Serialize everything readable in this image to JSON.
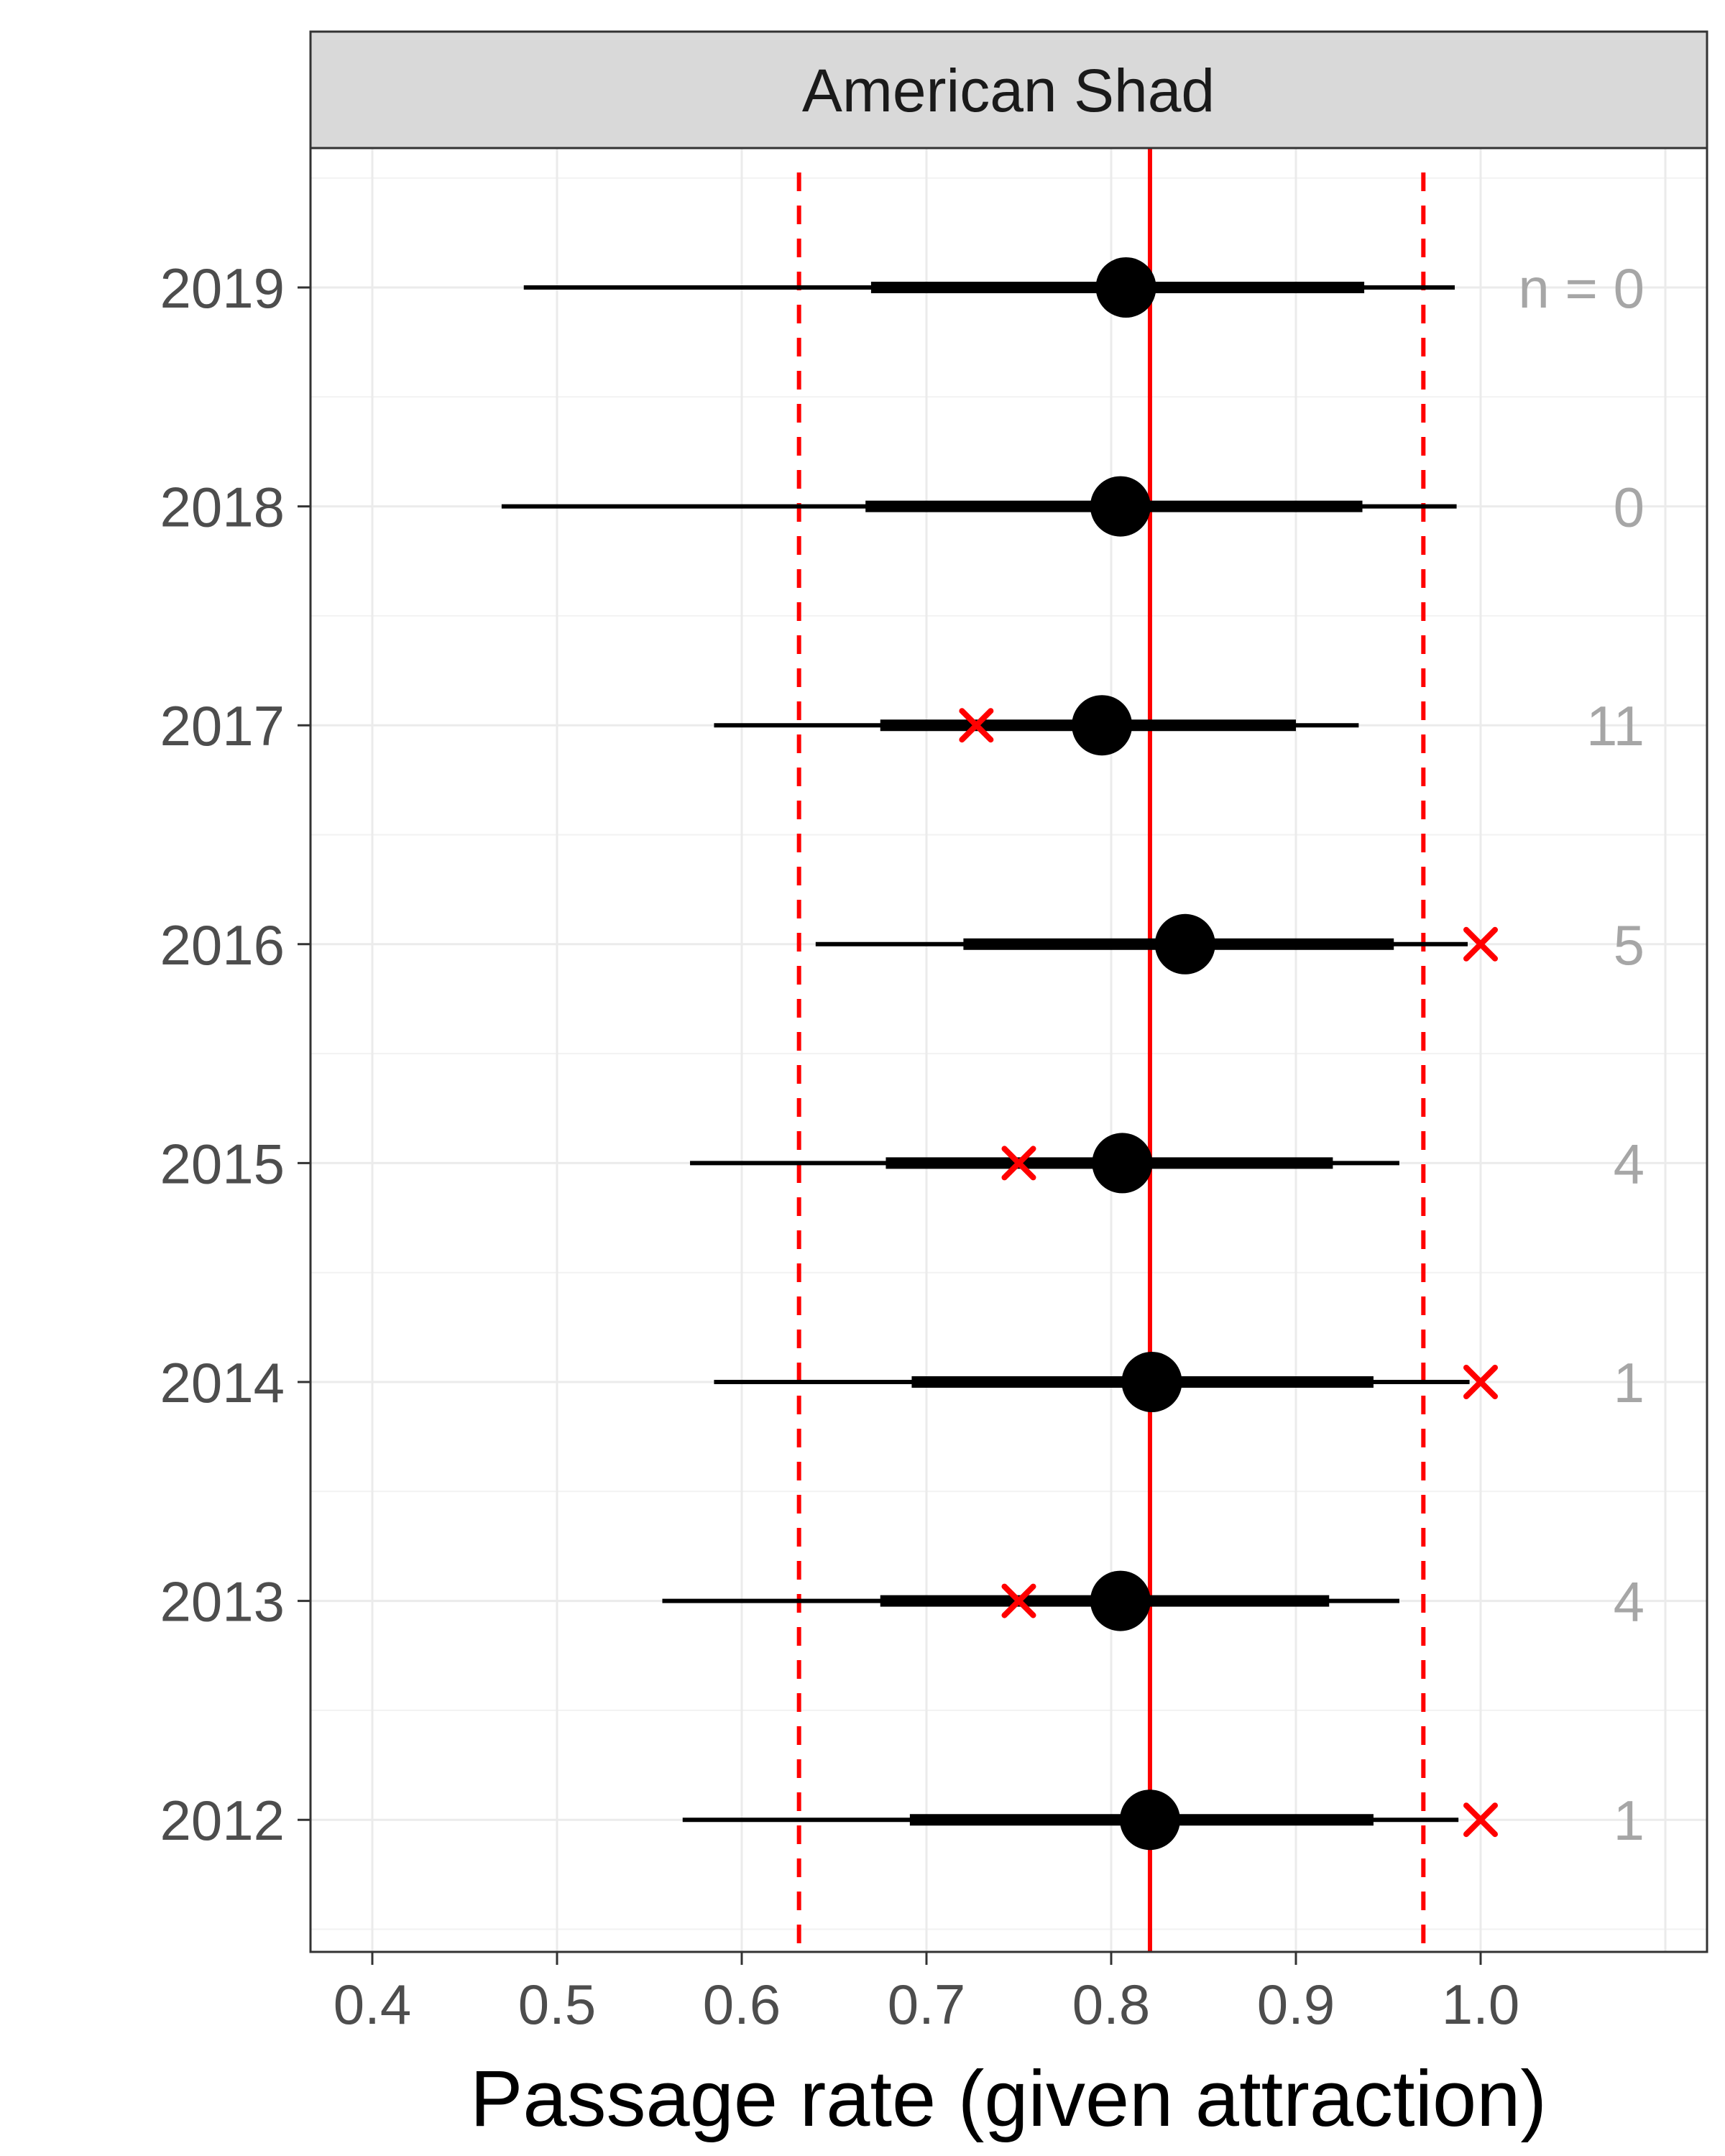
{
  "chart_data": {
    "type": "forest",
    "panel_title": "American Shad",
    "xlabel": "Passage rate (given attraction)",
    "ylabel": "",
    "xlim": [
      0.366,
      1.1
    ],
    "x_ticks": [
      "0.4",
      "0.5",
      "0.6",
      "0.7",
      "0.8",
      "0.9",
      "1.0"
    ],
    "x_tick_values": [
      0.4,
      0.5,
      0.6,
      0.7,
      0.8,
      0.9,
      1.0
    ],
    "grid": true,
    "reference": {
      "mean": 0.821,
      "lower": 0.631,
      "upper": 0.969,
      "color": "#ff0000"
    },
    "colors": {
      "estimate": "#000000",
      "observed": "#ff0000",
      "n_label": "#a6a6a6"
    },
    "rows": [
      {
        "year": "2019",
        "estimate": 0.808,
        "inner": [
          0.67,
          0.937
        ],
        "outer": [
          0.482,
          0.986
        ],
        "observed": null,
        "n_label": "n = 0"
      },
      {
        "year": "2018",
        "estimate": 0.805,
        "inner": [
          0.667,
          0.936
        ],
        "outer": [
          0.47,
          0.987
        ],
        "observed": null,
        "n_label": "0"
      },
      {
        "year": "2017",
        "estimate": 0.795,
        "inner": [
          0.675,
          0.9
        ],
        "outer": [
          0.585,
          0.934
        ],
        "observed": 0.727,
        "n_label": "11"
      },
      {
        "year": "2016",
        "estimate": 0.84,
        "inner": [
          0.72,
          0.953
        ],
        "outer": [
          0.64,
          0.993
        ],
        "observed": 1.0,
        "n_label": "5"
      },
      {
        "year": "2015",
        "estimate": 0.806,
        "inner": [
          0.678,
          0.92
        ],
        "outer": [
          0.572,
          0.956
        ],
        "observed": 0.75,
        "n_label": "4"
      },
      {
        "year": "2014",
        "estimate": 0.822,
        "inner": [
          0.692,
          0.942
        ],
        "outer": [
          0.585,
          0.994
        ],
        "observed": 1.0,
        "n_label": "1"
      },
      {
        "year": "2013",
        "estimate": 0.805,
        "inner": [
          0.675,
          0.918
        ],
        "outer": [
          0.557,
          0.956
        ],
        "observed": 0.75,
        "n_label": "4"
      },
      {
        "year": "2012",
        "estimate": 0.821,
        "inner": [
          0.691,
          0.942
        ],
        "outer": [
          0.568,
          0.988
        ],
        "observed": 1.0,
        "n_label": "1"
      }
    ],
    "observed_marker": "x"
  }
}
